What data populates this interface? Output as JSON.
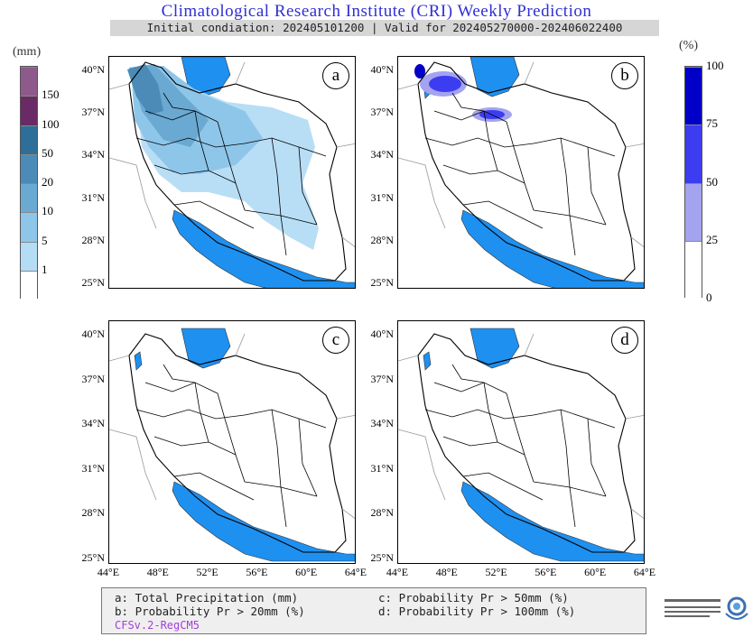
{
  "header": {
    "title": "Climatological Research Institute (CRI) Weekly Prediction",
    "subtitle": "Initial condiation: 202405101200 | Valid for 202405270000-202406022400"
  },
  "colorbar_left": {
    "unit": "(mm)",
    "levels": [
      "1",
      "5",
      "10",
      "20",
      "50",
      "100",
      "150"
    ],
    "colors": [
      "#ffffff",
      "#b4dcf4",
      "#8ec6ea",
      "#6aa9d2",
      "#4c8ab8",
      "#2d6f98",
      "#6a2a66",
      "#8e5a8c"
    ]
  },
  "colorbar_right": {
    "unit": "(%)",
    "levels": [
      "0",
      "25",
      "50",
      "75",
      "100"
    ],
    "colors": [
      "#ffffff",
      "#a3a3f0",
      "#3c3cf0",
      "#0000c8"
    ]
  },
  "axes": {
    "lat_ticks": [
      "40°N",
      "37°N",
      "34°N",
      "31°N",
      "28°N",
      "25°N"
    ],
    "lon_ticks": [
      "44°E",
      "48°E",
      "52°E",
      "56°E",
      "60°E",
      "64°E"
    ]
  },
  "panels": [
    {
      "id": "a",
      "label": "a"
    },
    {
      "id": "b",
      "label": "b"
    },
    {
      "id": "c",
      "label": "c"
    },
    {
      "id": "d",
      "label": "d"
    }
  ],
  "legend": {
    "a": "a: Total Precipitation (mm)",
    "b": "b: Probability Pr > 20mm (%)",
    "c": "c: Probability Pr > 50mm (%)",
    "d": "d: Probability Pr > 100mm (%)",
    "model": "CFSv.2-RegCM5"
  },
  "colors": {
    "water": "#1e90f0",
    "border": "#000000",
    "title": "#2f2fd6"
  }
}
